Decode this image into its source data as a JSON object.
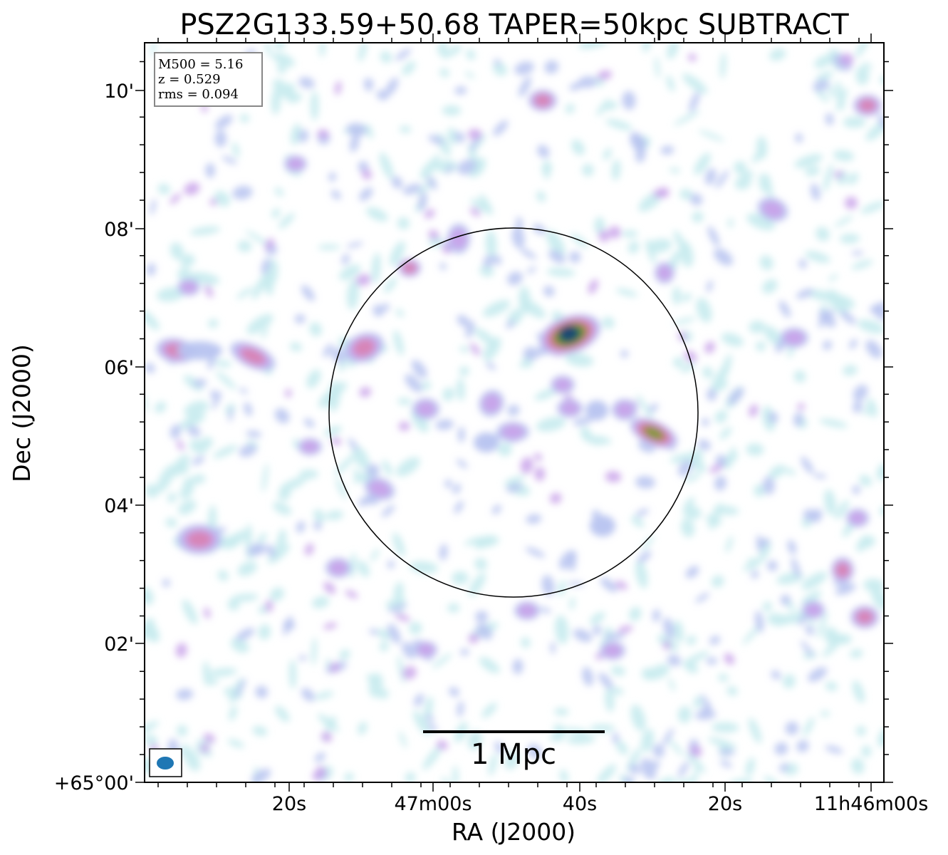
{
  "chart_data": {
    "type": "heatmap",
    "title": "PSZ2G133.59+50.68 TAPER=50kpc SUBTRACT",
    "xlabel": "RA (J2000)",
    "ylabel": "Dec (J2000)",
    "x_ticks": [
      "20s",
      "47m00s",
      "40s",
      "20s",
      "11h46m00s"
    ],
    "y_ticks": [
      "+65°00'",
      "02'",
      "04'",
      "06'",
      "08'",
      "10'"
    ],
    "info": {
      "m500": "M500 = 5.16",
      "z": "z = 0.529",
      "rms": "rms = 0.094"
    },
    "scalebar_label": "1 Mpc",
    "grid": false,
    "colormap": [
      "#ffffff",
      "#c6ebee",
      "#b7c3f0",
      "#c9a3ea",
      "#d883b4",
      "#c77a6a",
      "#7f9a3a",
      "#2f7d3a",
      "#1a4a72"
    ],
    "beam_color": "#1f77b4",
    "circle_color": "#000000"
  }
}
